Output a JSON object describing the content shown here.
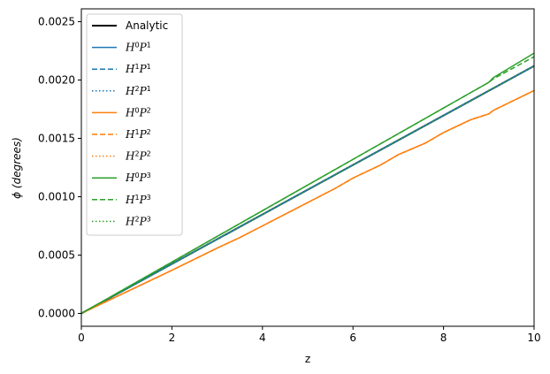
{
  "chart_data": {
    "type": "line",
    "xlabel": "z",
    "ylabel": "ϕ (degrees)",
    "xlim": [
      0,
      10
    ],
    "ylim": [
      -0.00011,
      0.00261
    ],
    "xticks": [
      0,
      2,
      4,
      6,
      8,
      10
    ],
    "xtick_labels": [
      "0",
      "2",
      "4",
      "6",
      "8",
      "10"
    ],
    "yticks": [
      0.0,
      0.0005,
      0.001,
      0.0015,
      0.002,
      0.0025
    ],
    "ytick_labels": [
      "0.0000",
      "0.0005",
      "0.0010",
      "0.0015",
      "0.0020",
      "0.0025"
    ],
    "grid": false,
    "legend_position": "upper-left",
    "series": [
      {
        "name": "Analytic",
        "color": "#000000",
        "style": "solid",
        "width": 2,
        "x": [
          0,
          10
        ],
        "y": [
          0,
          0.00212
        ]
      },
      {
        "name": "H0P1",
        "label_base": [
          "H",
          "P"
        ],
        "label_sups": [
          "0",
          "1"
        ],
        "color": "#1f77b4",
        "style": "solid",
        "width": 1.5,
        "x": [
          0,
          10
        ],
        "y": [
          0,
          0.00212
        ]
      },
      {
        "name": "H1P1",
        "label_base": [
          "H",
          "P"
        ],
        "label_sups": [
          "1",
          "1"
        ],
        "color": "#1f77b4",
        "style": "dashed",
        "width": 1.5,
        "x": [
          0,
          10
        ],
        "y": [
          0,
          0.00212
        ]
      },
      {
        "name": "H2P1",
        "label_base": [
          "H",
          "P"
        ],
        "label_sups": [
          "2",
          "1"
        ],
        "color": "#1f77b4",
        "style": "dotted",
        "width": 1.5,
        "x": [
          0,
          10
        ],
        "y": [
          0,
          0.00212
        ]
      },
      {
        "name": "H0P2",
        "label_base": [
          "H",
          "P"
        ],
        "label_sups": [
          "0",
          "2"
        ],
        "color": "#ff7f0e",
        "style": "solid",
        "width": 1.5,
        "x": [
          0,
          1,
          2,
          3,
          3.5,
          4,
          4.6,
          5,
          5.6,
          6,
          6.6,
          7,
          7.6,
          8,
          8.6,
          9,
          9.1,
          10
        ],
        "y": [
          0,
          0.000185,
          0.00037,
          0.00056,
          0.00065,
          0.00075,
          0.00087,
          0.00095,
          0.00107,
          0.00116,
          0.00127,
          0.00136,
          0.00146,
          0.00155,
          0.00166,
          0.00171,
          0.00174,
          0.00191
        ]
      },
      {
        "name": "H1P2",
        "label_base": [
          "H",
          "P"
        ],
        "label_sups": [
          "1",
          "2"
        ],
        "color": "#ff7f0e",
        "style": "dashed",
        "width": 1.5,
        "x": [
          0,
          1,
          2,
          3,
          3.5,
          4,
          4.6,
          5,
          5.6,
          6,
          6.6,
          7,
          7.6,
          8,
          8.6,
          9,
          9.1,
          10
        ],
        "y": [
          0,
          0.000185,
          0.00037,
          0.00056,
          0.00065,
          0.00075,
          0.00087,
          0.00095,
          0.00107,
          0.00116,
          0.00127,
          0.00136,
          0.00146,
          0.00155,
          0.00166,
          0.00171,
          0.00174,
          0.00191
        ]
      },
      {
        "name": "H2P2",
        "label_base": [
          "H",
          "P"
        ],
        "label_sups": [
          "2",
          "2"
        ],
        "color": "#ff7f0e",
        "style": "dotted",
        "width": 1.5,
        "x": [
          0,
          1,
          2,
          3,
          3.5,
          4,
          4.6,
          5,
          5.6,
          6,
          6.6,
          7,
          7.6,
          8,
          8.6,
          9,
          9.1,
          10
        ],
        "y": [
          0,
          0.000185,
          0.00037,
          0.00056,
          0.00065,
          0.00075,
          0.00087,
          0.00095,
          0.00107,
          0.00116,
          0.00127,
          0.00136,
          0.00146,
          0.00155,
          0.00166,
          0.00171,
          0.00174,
          0.00191
        ]
      },
      {
        "name": "H0P3",
        "label_base": [
          "H",
          "P"
        ],
        "label_sups": [
          "0",
          "3"
        ],
        "color": "#2ca02c",
        "style": "solid",
        "width": 1.5,
        "x": [
          0,
          2,
          4,
          6,
          8,
          9,
          9.1,
          10
        ],
        "y": [
          0,
          0.00044,
          0.00088,
          0.00132,
          0.00176,
          0.00198,
          0.00202,
          0.00223
        ]
      },
      {
        "name": "H1P3",
        "label_base": [
          "H",
          "P"
        ],
        "label_sups": [
          "1",
          "3"
        ],
        "color": "#2ca02c",
        "style": "dashed",
        "width": 1.5,
        "x": [
          0,
          2,
          4,
          6,
          8,
          9,
          9.1,
          10
        ],
        "y": [
          0,
          0.00044,
          0.00088,
          0.00132,
          0.00176,
          0.00198,
          0.00201,
          0.0022
        ]
      },
      {
        "name": "H2P3",
        "label_base": [
          "H",
          "P"
        ],
        "label_sups": [
          "2",
          "3"
        ],
        "color": "#2ca02c",
        "style": "dotted",
        "width": 1.5,
        "x": [
          0,
          10
        ],
        "y": [
          0,
          0.00212
        ]
      }
    ],
    "legend_labels": [
      "Analytic",
      "H0P1",
      "H1P1",
      "H2P1",
      "H0P2",
      "H1P2",
      "H2P2",
      "H0P3",
      "H1P3",
      "H2P3"
    ]
  }
}
